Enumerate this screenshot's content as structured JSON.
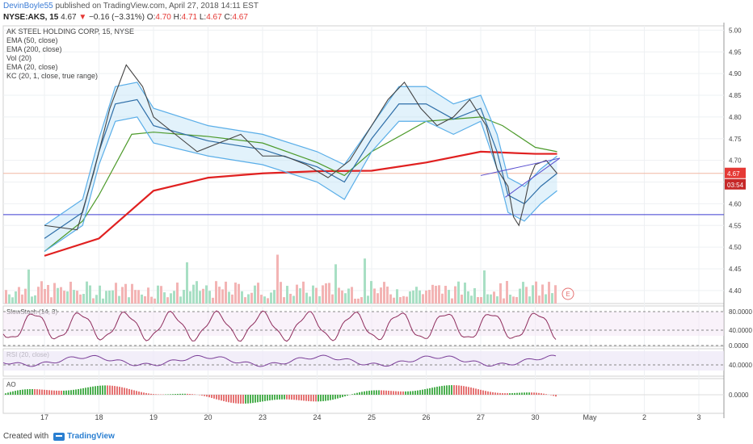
{
  "header": {
    "author": "DevinBoyle55",
    "published_text": "published on TradingView.com, April 27, 2018 14:11 EST",
    "symbol": "NYSE:AKS, 15",
    "last": "4.67",
    "change": "−0.16 (−3.31%)",
    "open_label": "O:",
    "open": "4.70",
    "high_label": "H:",
    "high": "4.71",
    "low_label": "L:",
    "low": "4.67",
    "close_label": "C:",
    "close": "4.67"
  },
  "legend": {
    "title": "AK STEEL HOLDING CORP, 15, NYSE",
    "items": [
      "EMA (50, close)",
      "EMA (200, close)",
      "Vol (20)",
      "EMA (20, close)",
      "KC (20, 1, close, true range)"
    ]
  },
  "indicators": {
    "stoch_label": "SlowStoch (14, 3)",
    "rsi_label": "RSI (20, close)",
    "ao_label": "AO",
    "earnings_marker": "E"
  },
  "footer": {
    "created_with": "Created with",
    "brand": "TradingView"
  },
  "chart_data": {
    "type": "line",
    "title": "AK STEEL HOLDING CORP, 15, NYSE",
    "x_ticks": [
      "17",
      "18",
      "19",
      "20",
      "23",
      "24",
      "25",
      "26",
      "27",
      "30",
      "May",
      "2",
      "3"
    ],
    "price_ticks": [
      "5.00",
      "4.95",
      "4.90",
      "4.85",
      "4.80",
      "4.75",
      "4.70",
      "4.65",
      "4.60",
      "4.55",
      "4.50",
      "4.45",
      "4.40"
    ],
    "ylim": [
      4.37,
      5.01
    ],
    "current_price": "4.67",
    "countdown": "03:54",
    "horizontal_level": 4.575,
    "stoch_ticks": [
      "80.0000",
      "40.0000",
      "0.0000"
    ],
    "rsi_ticks": [
      "40.0000"
    ],
    "ao_ticks": [
      "0.0000"
    ],
    "series": [
      {
        "name": "EMA (200, close)",
        "color": "#e02020",
        "x": [
          0,
          1,
          2,
          3,
          4,
          5,
          6,
          7,
          8,
          9,
          9.4
        ],
        "y": [
          4.48,
          4.52,
          4.63,
          4.66,
          4.67,
          4.675,
          4.676,
          4.695,
          4.72,
          4.715,
          4.715
        ]
      },
      {
        "name": "EMA (50, close)",
        "color": "#4c9a2a",
        "x": [
          0,
          0.7,
          1,
          1.6,
          2,
          3,
          4,
          5,
          5.5,
          6,
          7,
          8,
          8.4,
          9,
          9.4
        ],
        "y": [
          4.49,
          4.56,
          4.62,
          4.76,
          4.765,
          4.755,
          4.74,
          4.695,
          4.665,
          4.72,
          4.79,
          4.8,
          4.78,
          4.73,
          4.72
        ]
      },
      {
        "name": "EMA (20, close)",
        "color": "#2f6fa8",
        "x": [
          0,
          0.7,
          1,
          1.3,
          1.7,
          2,
          3,
          4,
          5,
          5.5,
          6,
          6.5,
          7,
          7.5,
          8,
          8.3,
          8.5,
          8.8,
          9.1,
          9.4
        ],
        "y": [
          4.52,
          4.58,
          4.72,
          4.83,
          4.84,
          4.78,
          4.745,
          4.725,
          4.685,
          4.65,
          4.75,
          4.83,
          4.83,
          4.795,
          4.82,
          4.72,
          4.62,
          4.6,
          4.64,
          4.67
        ]
      },
      {
        "name": "KC upper",
        "color": "#5aaee8",
        "x": [
          0,
          0.7,
          1,
          1.3,
          1.7,
          2,
          3,
          4,
          5,
          5.5,
          6,
          6.5,
          7,
          7.5,
          8,
          8.3,
          8.5,
          8.8,
          9.1,
          9.4
        ],
        "y": [
          4.55,
          4.61,
          4.75,
          4.87,
          4.88,
          4.82,
          4.78,
          4.76,
          4.72,
          4.69,
          4.78,
          4.87,
          4.87,
          4.83,
          4.85,
          4.76,
          4.66,
          4.64,
          4.68,
          4.71
        ]
      },
      {
        "name": "KC lower",
        "color": "#5aaee8",
        "x": [
          0,
          0.7,
          1,
          1.3,
          1.7,
          2,
          3,
          4,
          5,
          5.5,
          6,
          6.5,
          7,
          7.5,
          8,
          8.3,
          8.5,
          8.8,
          9.1,
          9.4
        ],
        "y": [
          4.49,
          4.55,
          4.69,
          4.79,
          4.8,
          4.74,
          4.71,
          4.69,
          4.65,
          4.61,
          4.72,
          4.79,
          4.79,
          4.76,
          4.79,
          4.68,
          4.58,
          4.56,
          4.6,
          4.63
        ]
      },
      {
        "name": "Price",
        "color": "#444444",
        "x": [
          0,
          0.6,
          0.9,
          1.2,
          1.5,
          1.8,
          2,
          2.4,
          2.8,
          3.2,
          3.6,
          4,
          4.4,
          4.8,
          5.2,
          5.6,
          6,
          6.3,
          6.6,
          6.9,
          7.2,
          7.5,
          7.8,
          8.1,
          8.3,
          8.5,
          8.6,
          8.7,
          8.8,
          8.9,
          9,
          9.2,
          9.4
        ],
        "y": [
          4.55,
          4.54,
          4.67,
          4.82,
          4.92,
          4.87,
          4.8,
          4.76,
          4.72,
          4.74,
          4.76,
          4.71,
          4.71,
          4.69,
          4.66,
          4.7,
          4.78,
          4.84,
          4.88,
          4.82,
          4.78,
          4.8,
          4.84,
          4.78,
          4.68,
          4.64,
          4.57,
          4.55,
          4.6,
          4.66,
          4.69,
          4.7,
          4.67
        ]
      }
    ]
  }
}
